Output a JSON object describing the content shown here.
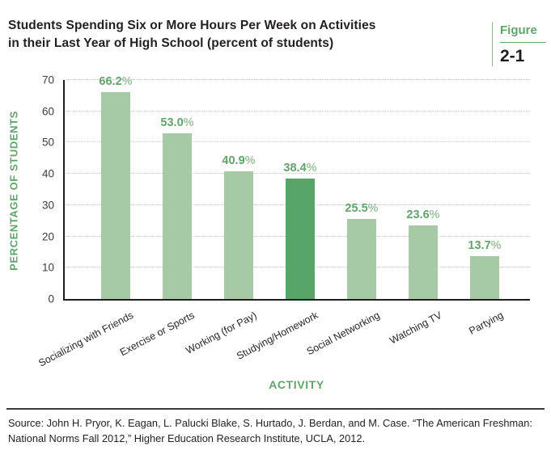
{
  "title": {
    "line1": "Students Spending Six or More Hours Per Week on Activities",
    "line2": "in their Last Year of High School (percent of students)"
  },
  "figure_badge": {
    "label": "Figure",
    "number": "2-1"
  },
  "chart_data": {
    "type": "bar",
    "title": "Students Spending Six or More Hours Per Week on Activities in their Last Year of High School (percent of students)",
    "categories": [
      "Socializing with Friends",
      "Exercise or Sports",
      "Working (for Pay)",
      "Studying/Homework",
      "Social Networking",
      "Watching TV",
      "Partying"
    ],
    "values": [
      66.2,
      53.0,
      40.9,
      38.4,
      25.5,
      23.6,
      13.7
    ],
    "value_labels": [
      "66.2%",
      "53.0%",
      "40.9%",
      "38.4%",
      "25.5%",
      "23.6%",
      "13.7%"
    ],
    "highlight_index": 3,
    "xlabel": "ACTIVITY",
    "ylabel": "PERCENTAGE OF STUDENTS",
    "ylim": [
      0,
      70
    ],
    "yticks": [
      0,
      10,
      20,
      30,
      40,
      50,
      60,
      70
    ],
    "grid": "horizontal-dotted",
    "legend": "none",
    "colors": {
      "bar": "#a7caa6",
      "bar_highlight": "#58a667",
      "green_text": "#61a46b",
      "percent_suffix": "#9cc49d",
      "grid": "#c9c9c9",
      "tick_text": "#3d3d3d",
      "axis": "#1f1f1f"
    }
  },
  "footer": {
    "source_text": "Source: John H. Pryor, K. Eagan, L. Palucki Blake, S. Hurtado, J. Berdan, and M. Case. “The American Freshman: National Norms Fall 2012,” Higher Education Research Institute, UCLA, 2012."
  }
}
